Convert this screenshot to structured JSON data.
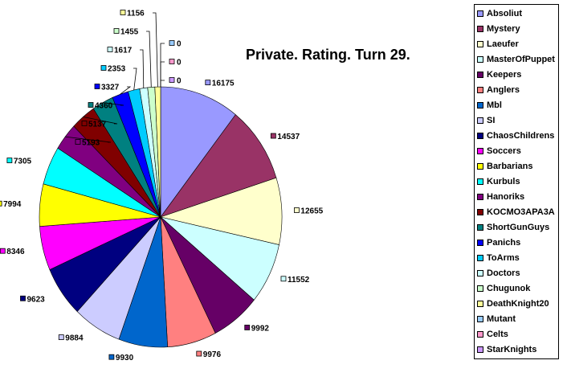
{
  "chart_data": {
    "type": "pie",
    "title": "Private. Rating. Turn 29.",
    "slices": [
      {
        "label": "Absoliut",
        "value": 16175,
        "color": "#9999ff"
      },
      {
        "label": "Mystery",
        "value": 14537,
        "color": "#993366"
      },
      {
        "label": "Laeufer",
        "value": 12655,
        "color": "#ffffcc"
      },
      {
        "label": "MasterOfPuppet",
        "value": 11552,
        "color": "#ccffff"
      },
      {
        "label": "Keepers",
        "value": 9992,
        "color": "#660066"
      },
      {
        "label": "Anglers",
        "value": 9976,
        "color": "#ff8080"
      },
      {
        "label": "Mbl",
        "value": 9930,
        "color": "#0066cc"
      },
      {
        "label": "SI",
        "value": 9884,
        "color": "#ccccff"
      },
      {
        "label": "ChaosChildrens",
        "value": 9623,
        "color": "#000080"
      },
      {
        "label": "Soccers",
        "value": 8346,
        "color": "#ff00ff"
      },
      {
        "label": "Barbarians",
        "value": 7994,
        "color": "#ffff00"
      },
      {
        "label": "Kurbuls",
        "value": 7305,
        "color": "#00ffff"
      },
      {
        "label": "Hanoriks",
        "value": 5193,
        "color": "#800080"
      },
      {
        "label": "KOCMO3APA3A",
        "value": 5137,
        "color": "#800000"
      },
      {
        "label": "ShortGunGuys",
        "value": 4360,
        "color": "#008080"
      },
      {
        "label": "Panichs",
        "value": 3327,
        "color": "#0000ff"
      },
      {
        "label": "ToArms",
        "value": 2353,
        "color": "#00ccff"
      },
      {
        "label": "Doctors",
        "value": 1617,
        "color": "#ccffff"
      },
      {
        "label": "Chugunok",
        "value": 1455,
        "color": "#ccffcc"
      },
      {
        "label": "DeathKnight20",
        "value": 1156,
        "color": "#ffff99"
      },
      {
        "label": "Mutant",
        "value": 0,
        "color": "#99ccff"
      },
      {
        "label": "Celts",
        "value": 0,
        "color": "#ff99cc"
      },
      {
        "label": "StarKnights",
        "value": 0,
        "color": "#cc99ff"
      }
    ],
    "legend_position": "right"
  }
}
